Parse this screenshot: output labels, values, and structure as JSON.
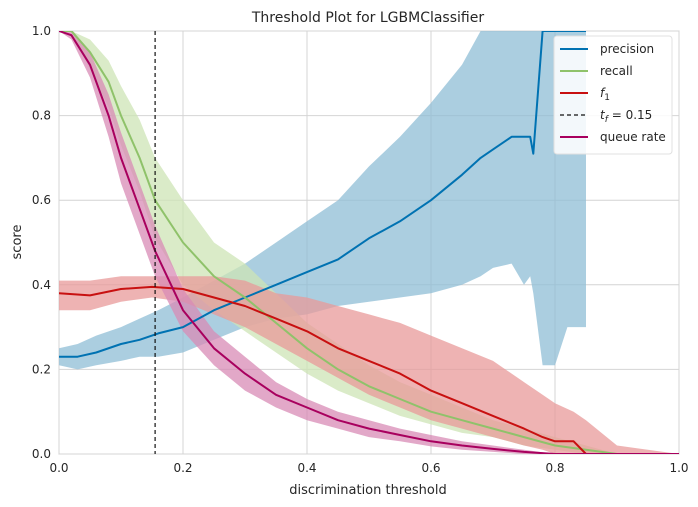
{
  "chart_data": {
    "type": "line",
    "title": "Threshold Plot for LGBMClassifier",
    "xlabel": "discrimination threshold",
    "ylabel": "score",
    "xlim": [
      0,
      1
    ],
    "ylim": [
      0,
      1
    ],
    "xticks": [
      "0.0",
      "0.2",
      "0.4",
      "0.6",
      "0.8",
      "1.0"
    ],
    "yticks": [
      "0.0",
      "0.2",
      "0.4",
      "0.6",
      "0.8",
      "1.0"
    ],
    "grid": true,
    "legend_position": "top-right",
    "threshold": 0.155,
    "threshold_label_main": "t",
    "threshold_label_sub": "f",
    "threshold_label_value": " = 0.15",
    "series": [
      {
        "name": "precision",
        "color": "#0072B2",
        "band_color": "#8fbdd6",
        "x": [
          0.0,
          0.03,
          0.06,
          0.1,
          0.13,
          0.16,
          0.2,
          0.25,
          0.3,
          0.35,
          0.4,
          0.45,
          0.5,
          0.55,
          0.6,
          0.65,
          0.68,
          0.7,
          0.73,
          0.75,
          0.76,
          0.765,
          0.78,
          0.8,
          0.82,
          0.85
        ],
        "values": [
          0.23,
          0.23,
          0.24,
          0.26,
          0.27,
          0.285,
          0.3,
          0.34,
          0.37,
          0.4,
          0.43,
          0.46,
          0.51,
          0.55,
          0.6,
          0.66,
          0.7,
          0.72,
          0.75,
          0.75,
          0.75,
          0.71,
          1.0,
          1.0,
          1.0,
          1.0
        ],
        "upper": [
          0.25,
          0.26,
          0.28,
          0.3,
          0.32,
          0.34,
          0.37,
          0.41,
          0.45,
          0.5,
          0.55,
          0.6,
          0.68,
          0.75,
          0.83,
          0.92,
          1.0,
          1.0,
          1.0,
          1.0,
          1.0,
          1.0,
          1.0,
          1.0,
          1.0,
          1.0
        ],
        "lower": [
          0.21,
          0.2,
          0.21,
          0.22,
          0.23,
          0.23,
          0.24,
          0.27,
          0.3,
          0.32,
          0.33,
          0.35,
          0.36,
          0.37,
          0.38,
          0.4,
          0.42,
          0.44,
          0.45,
          0.4,
          0.42,
          0.38,
          0.21,
          0.21,
          0.3,
          0.3
        ]
      },
      {
        "name": "recall",
        "color": "#8fc26a",
        "band_color": "#cde4b6",
        "x": [
          0.0,
          0.02,
          0.05,
          0.08,
          0.1,
          0.13,
          0.155,
          0.2,
          0.25,
          0.3,
          0.35,
          0.4,
          0.45,
          0.5,
          0.55,
          0.6,
          0.65,
          0.7,
          0.75,
          0.8,
          0.85,
          0.9,
          1.0
        ],
        "values": [
          1.0,
          1.0,
          0.95,
          0.88,
          0.8,
          0.7,
          0.6,
          0.5,
          0.42,
          0.37,
          0.31,
          0.25,
          0.2,
          0.16,
          0.13,
          0.1,
          0.08,
          0.06,
          0.04,
          0.02,
          0.01,
          0.0,
          0.0
        ],
        "upper": [
          1.0,
          1.0,
          0.98,
          0.93,
          0.87,
          0.79,
          0.7,
          0.6,
          0.5,
          0.45,
          0.38,
          0.31,
          0.26,
          0.21,
          0.17,
          0.14,
          0.11,
          0.08,
          0.06,
          0.04,
          0.02,
          0.0,
          0.0
        ],
        "lower": [
          1.0,
          1.0,
          0.91,
          0.82,
          0.73,
          0.62,
          0.51,
          0.4,
          0.34,
          0.29,
          0.24,
          0.19,
          0.15,
          0.12,
          0.09,
          0.07,
          0.05,
          0.04,
          0.02,
          0.01,
          0.0,
          0.0,
          0.0
        ]
      },
      {
        "name": "f1",
        "color": "#c81010",
        "band_color": "#e89a9a",
        "x": [
          0.0,
          0.05,
          0.1,
          0.15,
          0.2,
          0.25,
          0.3,
          0.35,
          0.4,
          0.45,
          0.5,
          0.55,
          0.6,
          0.65,
          0.7,
          0.75,
          0.78,
          0.8,
          0.83,
          0.85,
          0.9,
          1.0
        ],
        "values": [
          0.38,
          0.375,
          0.39,
          0.395,
          0.39,
          0.37,
          0.35,
          0.32,
          0.29,
          0.25,
          0.22,
          0.19,
          0.15,
          0.12,
          0.09,
          0.06,
          0.04,
          0.03,
          0.03,
          0.0,
          0.0,
          0.0
        ],
        "upper": [
          0.41,
          0.41,
          0.42,
          0.42,
          0.42,
          0.42,
          0.41,
          0.38,
          0.37,
          0.35,
          0.33,
          0.31,
          0.28,
          0.25,
          0.22,
          0.17,
          0.14,
          0.12,
          0.1,
          0.08,
          0.02,
          0.0
        ],
        "lower": [
          0.34,
          0.34,
          0.36,
          0.37,
          0.36,
          0.33,
          0.3,
          0.26,
          0.22,
          0.18,
          0.14,
          0.11,
          0.08,
          0.06,
          0.04,
          0.02,
          0.01,
          0.0,
          0.0,
          0.0,
          0.0,
          0.0
        ]
      },
      {
        "name": "queue rate",
        "color": "#a8005e",
        "band_color": "#d88bb6",
        "x": [
          0.0,
          0.02,
          0.05,
          0.08,
          0.1,
          0.13,
          0.155,
          0.2,
          0.25,
          0.3,
          0.35,
          0.4,
          0.45,
          0.5,
          0.55,
          0.6,
          0.65,
          0.7,
          0.75,
          0.8,
          0.9,
          1.0
        ],
        "values": [
          1.0,
          0.99,
          0.92,
          0.8,
          0.7,
          0.58,
          0.48,
          0.34,
          0.25,
          0.19,
          0.14,
          0.11,
          0.08,
          0.06,
          0.045,
          0.03,
          0.02,
          0.012,
          0.005,
          0.0,
          0.0,
          0.0
        ],
        "upper": [
          1.0,
          1.0,
          0.95,
          0.85,
          0.76,
          0.64,
          0.54,
          0.39,
          0.29,
          0.23,
          0.17,
          0.13,
          0.1,
          0.08,
          0.06,
          0.045,
          0.03,
          0.02,
          0.01,
          0.0,
          0.0,
          0.0
        ],
        "lower": [
          1.0,
          0.98,
          0.89,
          0.75,
          0.64,
          0.52,
          0.42,
          0.29,
          0.21,
          0.15,
          0.11,
          0.08,
          0.06,
          0.04,
          0.03,
          0.018,
          0.01,
          0.005,
          0.0,
          0.0,
          0.0,
          0.0
        ]
      }
    ]
  }
}
